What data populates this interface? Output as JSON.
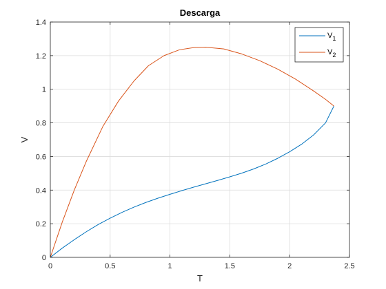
{
  "chart_data": {
    "type": "line",
    "title": "Descarga",
    "xlabel": "T",
    "ylabel": "V",
    "xlim": [
      0,
      2.5
    ],
    "ylim": [
      0,
      1.4
    ],
    "xticks": [
      0,
      0.5,
      1,
      1.5,
      2,
      2.5
    ],
    "xtick_labels": [
      "0",
      "0.5",
      "1",
      "1.5",
      "2",
      "2.5"
    ],
    "yticks": [
      0,
      0.2,
      0.4,
      0.6,
      0.8,
      1,
      1.2,
      1.4
    ],
    "ytick_labels": [
      "0",
      "0.2",
      "0.4",
      "0.6",
      "0.8",
      "1",
      "1.2",
      "1.4"
    ],
    "grid": true,
    "legend_position": "top-right",
    "series": [
      {
        "name": "V1",
        "legend_main": "V",
        "legend_sub": "1",
        "color": "#0072BD",
        "x": [
          0,
          0.1,
          0.2,
          0.3,
          0.4,
          0.5,
          0.6,
          0.7,
          0.8,
          0.9,
          1.0,
          1.1,
          1.2,
          1.3,
          1.4,
          1.5,
          1.6,
          1.7,
          1.8,
          1.9,
          2.0,
          2.1,
          2.2,
          2.3,
          2.37
        ],
        "y": [
          0,
          0.055,
          0.105,
          0.152,
          0.195,
          0.233,
          0.268,
          0.299,
          0.327,
          0.352,
          0.375,
          0.397,
          0.418,
          0.438,
          0.458,
          0.479,
          0.501,
          0.526,
          0.555,
          0.589,
          0.628,
          0.673,
          0.728,
          0.8,
          0.9
        ]
      },
      {
        "name": "V2",
        "legend_main": "V",
        "legend_sub": "2",
        "color": "#D95319",
        "x": [
          0,
          0.1,
          0.2,
          0.3,
          0.44,
          0.57,
          0.7,
          0.82,
          0.95,
          1.08,
          1.2,
          1.3,
          1.45,
          1.6,
          1.75,
          1.9,
          2.05,
          2.2,
          2.3,
          2.37
        ],
        "y": [
          0,
          0.21,
          0.4,
          0.57,
          0.78,
          0.93,
          1.05,
          1.14,
          1.2,
          1.235,
          1.248,
          1.25,
          1.24,
          1.21,
          1.17,
          1.12,
          1.06,
          0.99,
          0.94,
          0.9
        ]
      }
    ]
  }
}
